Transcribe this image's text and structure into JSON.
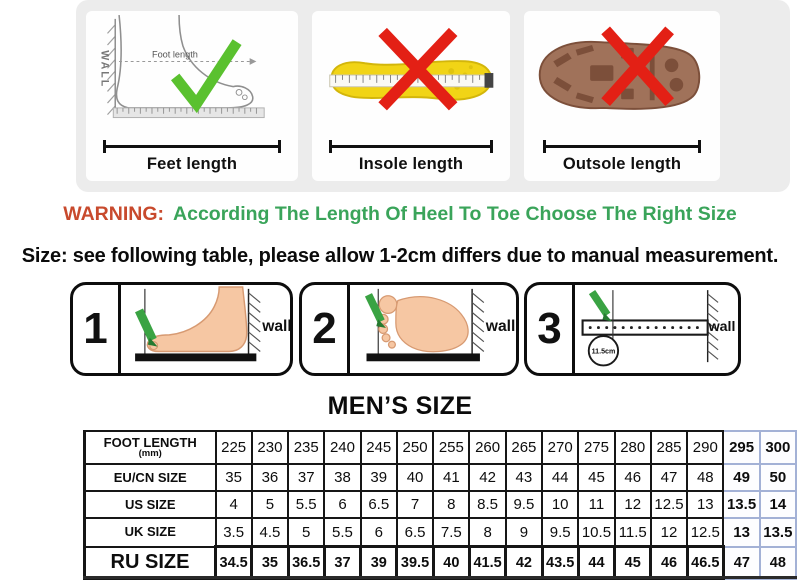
{
  "measure_cards": [
    {
      "wall_text": "WALL",
      "annotation": "Foot length",
      "label": "Feet length",
      "mark": "check"
    },
    {
      "label": "Insole length",
      "mark": "cross"
    },
    {
      "label": "Outsole length",
      "mark": "cross"
    }
  ],
  "warning": {
    "prefix": "WARNING:",
    "message": "According The Length Of Heel To Toe Choose The Right Size"
  },
  "size_note": "Size: see following table, please allow 1-2cm differs due to manual measurement.",
  "steps": [
    {
      "number": "1",
      "wall_label": "wall"
    },
    {
      "number": "2",
      "wall_label": "wall"
    },
    {
      "number": "3",
      "wall_label": "wall",
      "ruler_mark": "11.5cm"
    }
  ],
  "table": {
    "title": "MEN’S SIZE",
    "highlight_last_columns": 2,
    "rows": [
      {
        "label": "FOOT LENGTH",
        "sublabel": "(mm)",
        "values": [
          "225",
          "230",
          "235",
          "240",
          "245",
          "250",
          "255",
          "260",
          "265",
          "270",
          "275",
          "280",
          "285",
          "290",
          "295",
          "300"
        ]
      },
      {
        "label": "EU/CN SIZE",
        "values": [
          "35",
          "36",
          "37",
          "38",
          "39",
          "40",
          "41",
          "42",
          "43",
          "44",
          "45",
          "46",
          "47",
          "48",
          "49",
          "50"
        ]
      },
      {
        "label": "US SIZE",
        "values": [
          "4",
          "5",
          "5.5",
          "6",
          "6.5",
          "7",
          "8",
          "8.5",
          "9.5",
          "10",
          "11",
          "12",
          "12.5",
          "13",
          "13.5",
          "14"
        ]
      },
      {
        "label": "UK SIZE",
        "values": [
          "3.5",
          "4.5",
          "5",
          "5.5",
          "6",
          "6.5",
          "7.5",
          "8",
          "9",
          "9.5",
          "10.5",
          "11.5",
          "12",
          "12.5",
          "13",
          "13.5"
        ]
      },
      {
        "label": "RU SIZE",
        "values": [
          "34.5",
          "35",
          "36.5",
          "37",
          "39",
          "39.5",
          "40",
          "41.5",
          "42",
          "43.5",
          "44",
          "45",
          "46",
          "46.5",
          "47",
          "48"
        ]
      }
    ]
  },
  "colors": {
    "warning_red": "#c84a2d",
    "warning_green": "#3aa45a",
    "check_green": "#5ac12f",
    "cross_red": "#e32015",
    "insole_yellow": "#f1d416",
    "outsole_brown": "#a0725a",
    "skin": "#f6c7a3",
    "panel_gray": "#ececec",
    "highlight_border": "#a3b1d6"
  }
}
